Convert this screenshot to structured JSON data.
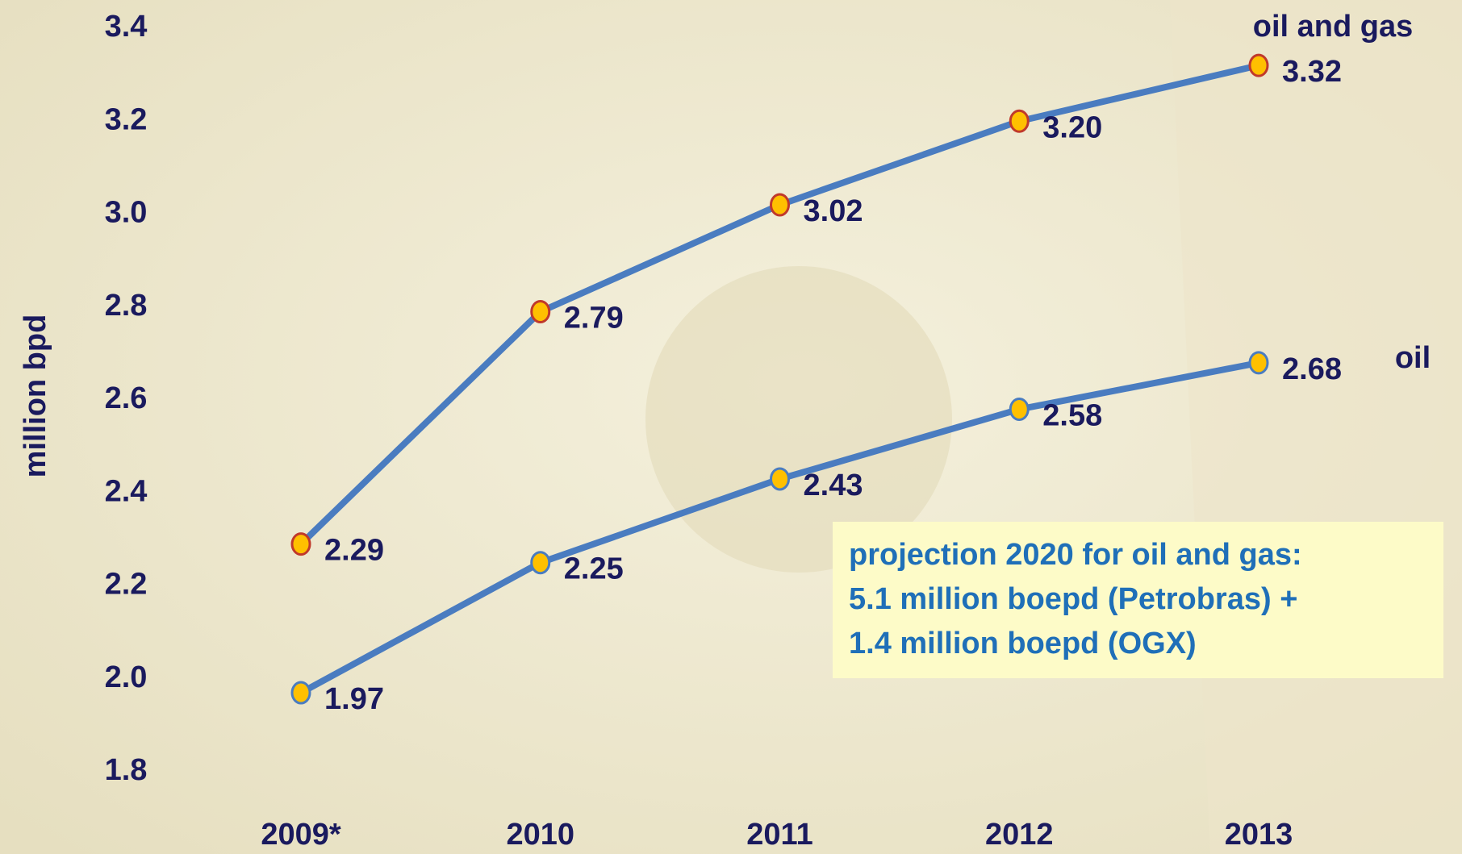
{
  "chart_data": {
    "type": "line",
    "y_label": "million bpd",
    "categories": [
      "2009*",
      "2010",
      "2011",
      "2012",
      "2013"
    ],
    "series": [
      {
        "name": "oil and gas",
        "color": "#4a7cc0",
        "marker_color": "#ffc000",
        "marker_edge": "#c0392b",
        "values": [
          2.29,
          2.79,
          3.02,
          3.2,
          3.32
        ],
        "value_labels": [
          "2.29",
          "2.79",
          "3.02",
          "3.20",
          "3.32"
        ]
      },
      {
        "name": "oil",
        "color": "#4a7cc0",
        "marker_color": "#ffc000",
        "marker_edge": "#4a7cc0",
        "values": [
          1.97,
          2.25,
          2.43,
          2.58,
          2.68
        ],
        "value_labels": [
          "1.97",
          "2.25",
          "2.43",
          "2.58",
          "2.68"
        ]
      }
    ],
    "ylim": [
      1.8,
      3.4
    ],
    "yticks": [
      1.8,
      {
        "value": 2.0,
        "label": "2.0"
      },
      2.2,
      2.4,
      2.6,
      2.8,
      {
        "value": 3.0,
        "label": "3.0"
      },
      3.2,
      3.4
    ],
    "grid": false,
    "annotation": [
      "projection 2020 for oil and gas:",
      "5.1 million boepd (Petrobras) +",
      "1.4 million boepd (OGX)"
    ]
  }
}
